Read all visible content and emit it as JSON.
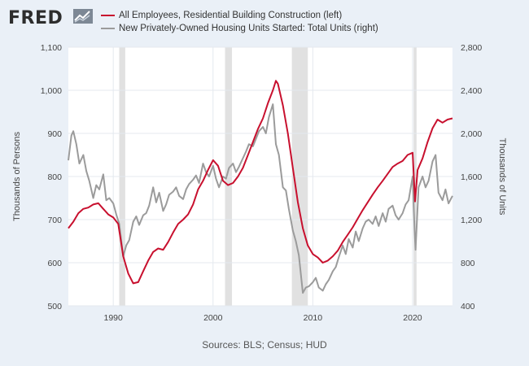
{
  "header": {
    "logo_text": "FRED",
    "logo_icon": "trend-line-icon"
  },
  "legend": [
    {
      "label": "All Employees, Residential Building Construction (left)",
      "color": "#c8102e"
    },
    {
      "label": "New Privately-Owned Housing Units Started: Total Units (right)",
      "color": "#9b9b9b"
    }
  ],
  "footer": {
    "source": "Sources: BLS; Census; HUD"
  },
  "colors": {
    "background": "#eaf0f7",
    "plot_background": "#ffffff",
    "recession": "#e1e1e1",
    "grid": "#e4e9ef"
  },
  "chart_data": {
    "type": "line",
    "x_range": [
      1985.5,
      2024.0
    ],
    "x_ticks": [
      1990,
      2000,
      2010,
      2020
    ],
    "x_tick_labels": [
      "1990",
      "2000",
      "2010",
      "2020"
    ],
    "y_left": {
      "label": "Thousands of Persons",
      "range": [
        500,
        1100
      ],
      "ticks": [
        500,
        600,
        700,
        800,
        900,
        1000,
        1100
      ],
      "tick_labels": [
        "500",
        "600",
        "700",
        "800",
        "900",
        "1,000",
        "1,100"
      ]
    },
    "y_right": {
      "label": "Thousands of Units",
      "range": [
        400,
        2800
      ],
      "ticks": [
        400,
        800,
        1200,
        1600,
        2000,
        2400,
        2800
      ],
      "tick_labels": [
        "400",
        "800",
        "1,200",
        "1,600",
        "2,000",
        "2,400",
        "2,800"
      ]
    },
    "recessions": [
      [
        1990.6,
        1991.2
      ],
      [
        2001.2,
        2001.9
      ],
      [
        2007.9,
        2009.5
      ],
      [
        2020.1,
        2020.4
      ]
    ],
    "grid": true,
    "series": [
      {
        "name": "All Employees, Residential Building Construction (left)",
        "axis": "left",
        "color": "#c8102e",
        "points": [
          [
            1985.5,
            680
          ],
          [
            1986,
            695
          ],
          [
            1986.5,
            715
          ],
          [
            1987,
            725
          ],
          [
            1987.5,
            728
          ],
          [
            1988,
            735
          ],
          [
            1988.5,
            738
          ],
          [
            1989,
            725
          ],
          [
            1989.5,
            712
          ],
          [
            1990,
            705
          ],
          [
            1990.5,
            690
          ],
          [
            1991,
            615
          ],
          [
            1991.5,
            575
          ],
          [
            1992,
            552
          ],
          [
            1992.5,
            555
          ],
          [
            1993,
            580
          ],
          [
            1993.5,
            605
          ],
          [
            1994,
            625
          ],
          [
            1994.5,
            633
          ],
          [
            1995,
            630
          ],
          [
            1995.5,
            648
          ],
          [
            1996,
            670
          ],
          [
            1996.5,
            690
          ],
          [
            1997,
            700
          ],
          [
            1997.5,
            712
          ],
          [
            1998,
            735
          ],
          [
            1998.5,
            770
          ],
          [
            1999,
            790
          ],
          [
            1999.5,
            815
          ],
          [
            2000,
            838
          ],
          [
            2000.5,
            825
          ],
          [
            2001,
            790
          ],
          [
            2001.5,
            780
          ],
          [
            2002,
            785
          ],
          [
            2002.5,
            800
          ],
          [
            2003,
            820
          ],
          [
            2003.5,
            850
          ],
          [
            2004,
            880
          ],
          [
            2004.5,
            910
          ],
          [
            2005,
            935
          ],
          [
            2005.5,
            970
          ],
          [
            2006,
            1000
          ],
          [
            2006.3,
            1022
          ],
          [
            2006.5,
            1015
          ],
          [
            2007,
            965
          ],
          [
            2007.5,
            900
          ],
          [
            2008,
            820
          ],
          [
            2008.5,
            740
          ],
          [
            2009,
            680
          ],
          [
            2009.5,
            640
          ],
          [
            2010,
            620
          ],
          [
            2010.5,
            612
          ],
          [
            2011,
            600
          ],
          [
            2011.5,
            605
          ],
          [
            2012,
            615
          ],
          [
            2012.5,
            628
          ],
          [
            2013,
            648
          ],
          [
            2013.5,
            665
          ],
          [
            2014,
            682
          ],
          [
            2014.5,
            702
          ],
          [
            2015,
            722
          ],
          [
            2015.5,
            740
          ],
          [
            2016,
            758
          ],
          [
            2016.5,
            775
          ],
          [
            2017,
            790
          ],
          [
            2017.5,
            806
          ],
          [
            2018,
            822
          ],
          [
            2018.5,
            830
          ],
          [
            2019,
            836
          ],
          [
            2019.5,
            850
          ],
          [
            2020,
            855
          ],
          [
            2020.25,
            742
          ],
          [
            2020.5,
            815
          ],
          [
            2021,
            842
          ],
          [
            2021.5,
            880
          ],
          [
            2022,
            912
          ],
          [
            2022.5,
            932
          ],
          [
            2023,
            925
          ],
          [
            2023.5,
            932
          ],
          [
            2024,
            935
          ]
        ]
      },
      {
        "name": "New Privately-Owned Housing Units Started: Total Units (right)",
        "axis": "right",
        "color": "#9b9b9b",
        "points": [
          [
            1985.5,
            1750
          ],
          [
            1985.8,
            1980
          ],
          [
            1986,
            2020
          ],
          [
            1986.3,
            1900
          ],
          [
            1986.6,
            1720
          ],
          [
            1987,
            1800
          ],
          [
            1987.3,
            1650
          ],
          [
            1987.6,
            1560
          ],
          [
            1988,
            1400
          ],
          [
            1988.3,
            1520
          ],
          [
            1988.6,
            1480
          ],
          [
            1989,
            1620
          ],
          [
            1989.3,
            1380
          ],
          [
            1989.6,
            1400
          ],
          [
            1990,
            1350
          ],
          [
            1990.3,
            1250
          ],
          [
            1990.6,
            1160
          ],
          [
            1991,
            860
          ],
          [
            1991.3,
            960
          ],
          [
            1991.6,
            1010
          ],
          [
            1992,
            1180
          ],
          [
            1992.3,
            1230
          ],
          [
            1992.6,
            1150
          ],
          [
            1993,
            1240
          ],
          [
            1993.3,
            1260
          ],
          [
            1993.6,
            1330
          ],
          [
            1994,
            1500
          ],
          [
            1994.3,
            1360
          ],
          [
            1994.6,
            1450
          ],
          [
            1995,
            1280
          ],
          [
            1995.3,
            1340
          ],
          [
            1995.6,
            1430
          ],
          [
            1996,
            1460
          ],
          [
            1996.3,
            1500
          ],
          [
            1996.6,
            1420
          ],
          [
            1997,
            1390
          ],
          [
            1997.3,
            1480
          ],
          [
            1997.6,
            1530
          ],
          [
            1998,
            1570
          ],
          [
            1998.3,
            1610
          ],
          [
            1998.6,
            1540
          ],
          [
            1999,
            1720
          ],
          [
            1999.3,
            1640
          ],
          [
            1999.6,
            1600
          ],
          [
            2000,
            1700
          ],
          [
            2000.3,
            1580
          ],
          [
            2000.6,
            1500
          ],
          [
            2001,
            1600
          ],
          [
            2001.3,
            1580
          ],
          [
            2001.6,
            1680
          ],
          [
            2002,
            1720
          ],
          [
            2002.3,
            1640
          ],
          [
            2002.6,
            1690
          ],
          [
            2003,
            1770
          ],
          [
            2003.3,
            1830
          ],
          [
            2003.6,
            1900
          ],
          [
            2004,
            1880
          ],
          [
            2004.3,
            1950
          ],
          [
            2004.6,
            2020
          ],
          [
            2005,
            2060
          ],
          [
            2005.3,
            2000
          ],
          [
            2005.6,
            2150
          ],
          [
            2006,
            2270
          ],
          [
            2006.3,
            1900
          ],
          [
            2006.6,
            1800
          ],
          [
            2007,
            1500
          ],
          [
            2007.3,
            1470
          ],
          [
            2007.6,
            1300
          ],
          [
            2008,
            1100
          ],
          [
            2008.3,
            1000
          ],
          [
            2008.6,
            870
          ],
          [
            2009,
            520
          ],
          [
            2009.3,
            570
          ],
          [
            2009.6,
            580
          ],
          [
            2010,
            620
          ],
          [
            2010.3,
            660
          ],
          [
            2010.6,
            570
          ],
          [
            2011,
            540
          ],
          [
            2011.3,
            600
          ],
          [
            2011.6,
            640
          ],
          [
            2012,
            720
          ],
          [
            2012.3,
            760
          ],
          [
            2012.6,
            850
          ],
          [
            2013,
            960
          ],
          [
            2013.3,
            880
          ],
          [
            2013.6,
            1020
          ],
          [
            2014,
            940
          ],
          [
            2014.3,
            1090
          ],
          [
            2014.6,
            1000
          ],
          [
            2015,
            1120
          ],
          [
            2015.3,
            1180
          ],
          [
            2015.6,
            1200
          ],
          [
            2016,
            1160
          ],
          [
            2016.3,
            1230
          ],
          [
            2016.6,
            1140
          ],
          [
            2017,
            1260
          ],
          [
            2017.3,
            1180
          ],
          [
            2017.6,
            1300
          ],
          [
            2018,
            1330
          ],
          [
            2018.3,
            1240
          ],
          [
            2018.6,
            1200
          ],
          [
            2019,
            1260
          ],
          [
            2019.3,
            1340
          ],
          [
            2019.6,
            1380
          ],
          [
            2020,
            1600
          ],
          [
            2020.2,
            1100
          ],
          [
            2020.3,
            920
          ],
          [
            2020.6,
            1500
          ],
          [
            2021,
            1600
          ],
          [
            2021.3,
            1500
          ],
          [
            2021.6,
            1560
          ],
          [
            2022,
            1740
          ],
          [
            2022.3,
            1800
          ],
          [
            2022.6,
            1450
          ],
          [
            2023,
            1380
          ],
          [
            2023.3,
            1480
          ],
          [
            2023.6,
            1350
          ],
          [
            2024,
            1420
          ]
        ]
      }
    ]
  }
}
